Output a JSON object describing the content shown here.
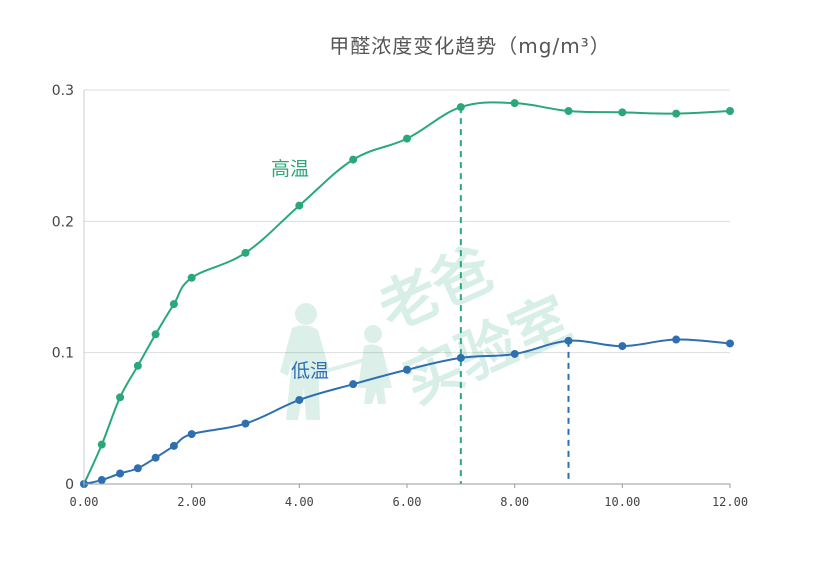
{
  "chart_data": {
    "type": "line",
    "title": "甲醛浓度变化趋势（mg/m³）",
    "xlabel": "",
    "ylabel": "",
    "xlim": [
      0,
      12
    ],
    "ylim": [
      0,
      0.3
    ],
    "x_ticks": [
      "0.00",
      "2.00",
      "4.00",
      "6.00",
      "8.00",
      "10.00",
      "12.00"
    ],
    "y_ticks": [
      "0",
      "0.1",
      "0.2",
      "0.3"
    ],
    "grid": true,
    "series": [
      {
        "name": "高温",
        "color": "#2aa87a",
        "x": [
          0,
          0.33,
          0.67,
          1.0,
          1.33,
          1.67,
          2.0,
          3.0,
          4.0,
          5.0,
          6.0,
          7.0,
          8.0,
          9.0,
          10.0,
          11.0,
          12.0
        ],
        "y": [
          0,
          0.03,
          0.066,
          0.09,
          0.114,
          0.137,
          0.157,
          0.176,
          0.212,
          0.247,
          0.263,
          0.287,
          0.29,
          0.284,
          0.283,
          0.282,
          0.284
        ]
      },
      {
        "name": "低温",
        "color": "#2e6fb0",
        "x": [
          0,
          0.33,
          0.67,
          1.0,
          1.33,
          1.67,
          2.0,
          3.0,
          4.0,
          5.0,
          6.0,
          7.0,
          8.0,
          9.0,
          10.0,
          11.0,
          12.0
        ],
        "y": [
          0,
          0.003,
          0.008,
          0.012,
          0.02,
          0.029,
          0.038,
          0.046,
          0.064,
          0.076,
          0.087,
          0.096,
          0.099,
          0.109,
          0.105,
          0.11,
          0.107
        ]
      }
    ],
    "reference_lines": [
      {
        "x": 7.0,
        "y": 0.287,
        "color": "#2aa87a"
      },
      {
        "x": 9.0,
        "y": 0.109,
        "color": "#2e6fb0"
      }
    ],
    "watermark": {
      "line1": "老爸",
      "line2": "实验室"
    }
  }
}
